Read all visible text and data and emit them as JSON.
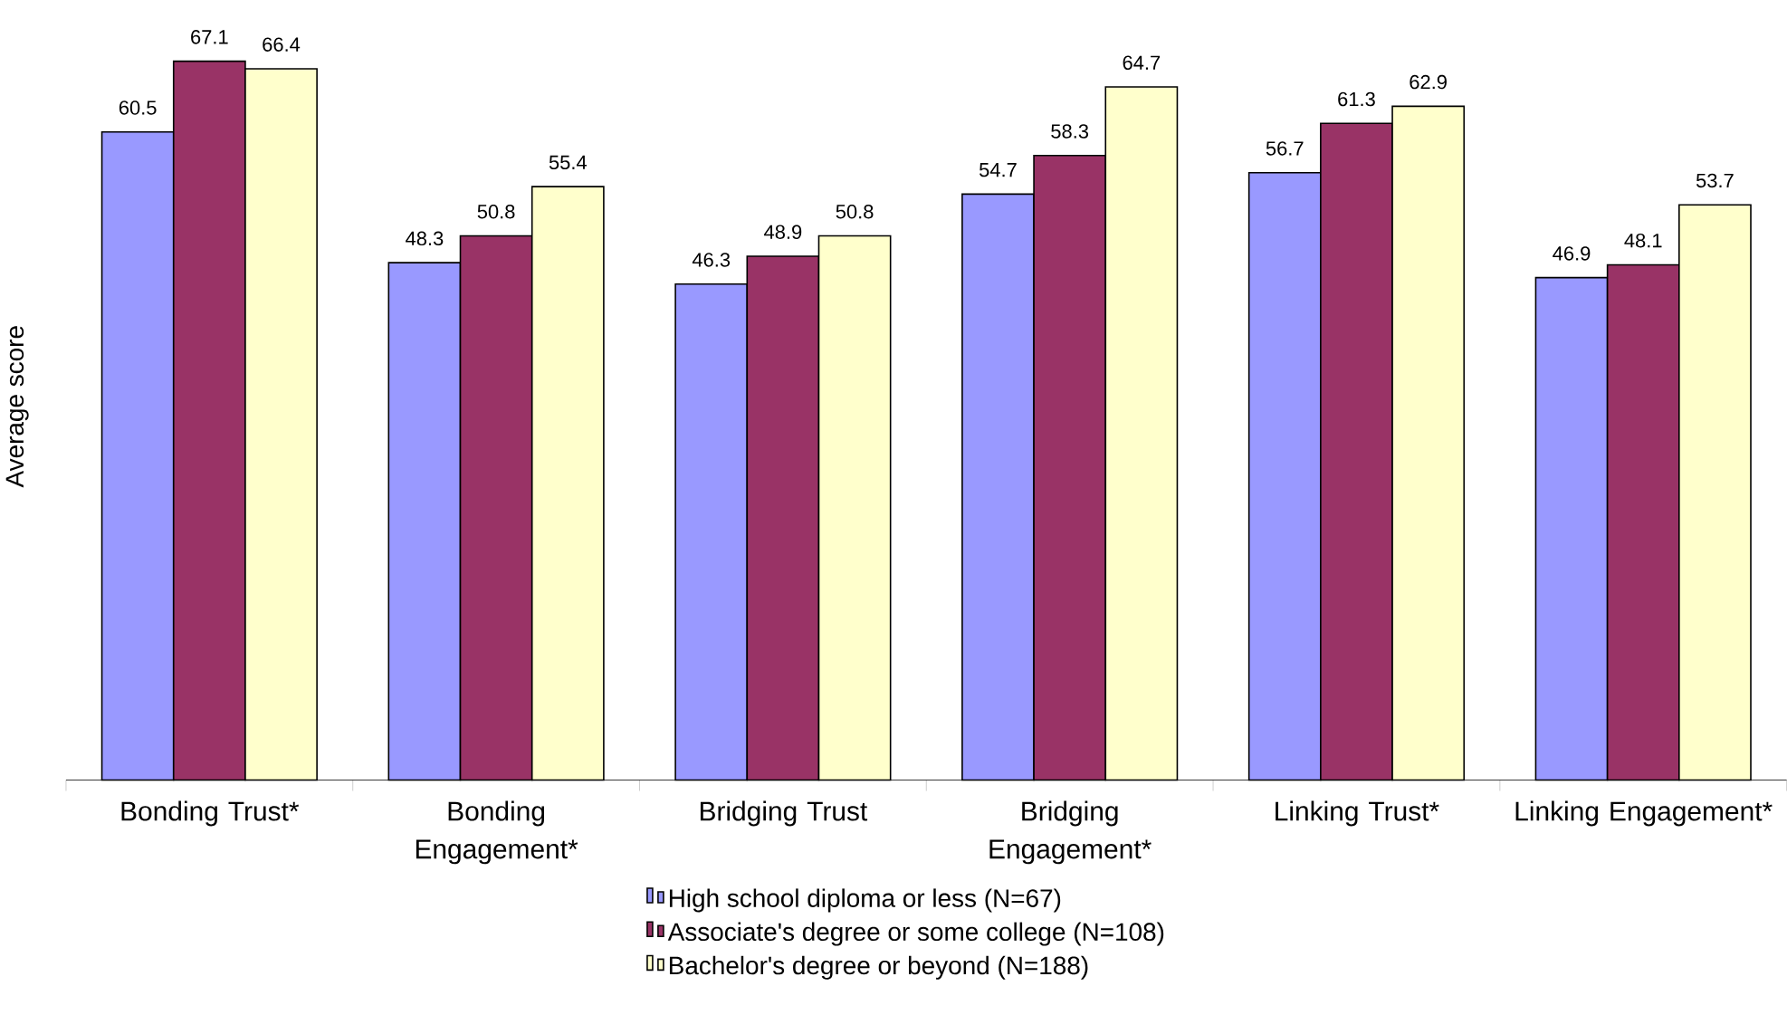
{
  "chart_data": {
    "type": "bar",
    "ylabel": "Average score",
    "categories": [
      "Bonding Trust*",
      "Bonding Engagement*",
      "Bridging Trust",
      "Bridging Engagement*",
      "Linking Trust*",
      "Linking Engagement*"
    ],
    "series": [
      {
        "name": "High school diploma or less (N=67)",
        "color": "#9999ff",
        "values": [
          60.5,
          48.3,
          46.3,
          54.7,
          56.7,
          46.9
        ]
      },
      {
        "name": "Associate's degree or some college (N=108)",
        "color": "#993366",
        "values": [
          67.1,
          50.8,
          48.9,
          58.3,
          61.3,
          48.1
        ]
      },
      {
        "name": "Bachelor's degree or beyond (N=188)",
        "color": "#ffffcc",
        "values": [
          66.4,
          55.4,
          50.8,
          64.7,
          62.9,
          53.7
        ]
      }
    ],
    "tick_labels": "x",
    "data_labels": true,
    "legend": "bottom"
  }
}
